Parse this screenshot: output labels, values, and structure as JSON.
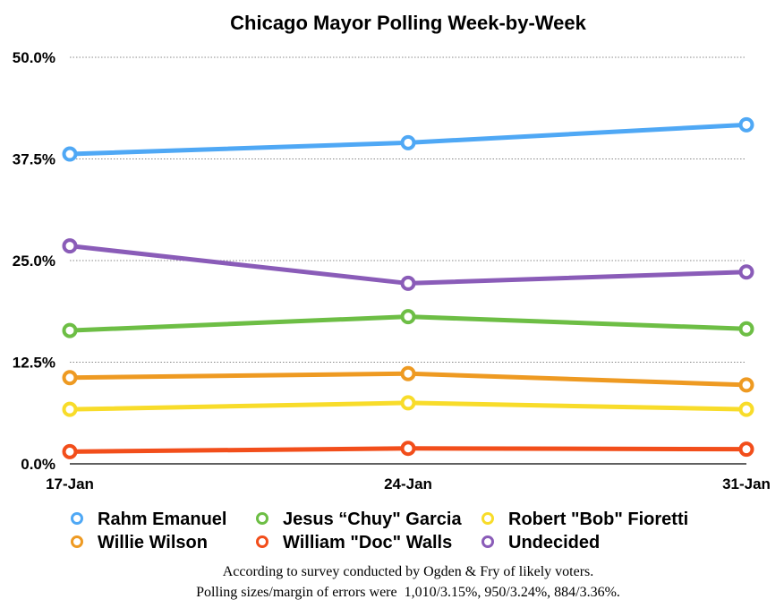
{
  "chart_data": {
    "type": "line",
    "title": "Chicago Mayor Polling Week-by-Week",
    "xlabel": "",
    "ylabel": "",
    "categories": [
      "17-Jan",
      "24-Jan",
      "31-Jan"
    ],
    "ylim": [
      0,
      50
    ],
    "yticks": [
      "0.0%",
      "12.5%",
      "25.0%",
      "37.5%",
      "50.0%"
    ],
    "grid": "horizontal dotted",
    "legend_position": "bottom",
    "series": [
      {
        "name": "Rahm Emanuel",
        "color": "#4FA8F5",
        "values": [
          38.1,
          39.5,
          41.7
        ]
      },
      {
        "name": "Jesus “Chuy\" Garcia",
        "color": "#6DBE45",
        "values": [
          16.4,
          18.1,
          16.6
        ]
      },
      {
        "name": "Robert \"Bob\" Fioretti",
        "color": "#F8DC2A",
        "values": [
          6.7,
          7.5,
          6.7
        ]
      },
      {
        "name": "Willie Wilson",
        "color": "#EE9A22",
        "values": [
          10.6,
          11.1,
          9.7
        ]
      },
      {
        "name": "William \"Doc\" Walls",
        "color": "#F24E1B",
        "values": [
          1.5,
          1.9,
          1.8
        ]
      },
      {
        "name": "Undecided",
        "color": "#8A5CB8",
        "values": [
          26.8,
          22.2,
          23.6
        ]
      }
    ]
  },
  "footnote": {
    "line1": "According to survey conducted by Ogden & Fry of likely voters.",
    "line2": "Polling sizes/margin of errors were  1,010/3.15%, 950/3.24%, 884/3.36%."
  }
}
